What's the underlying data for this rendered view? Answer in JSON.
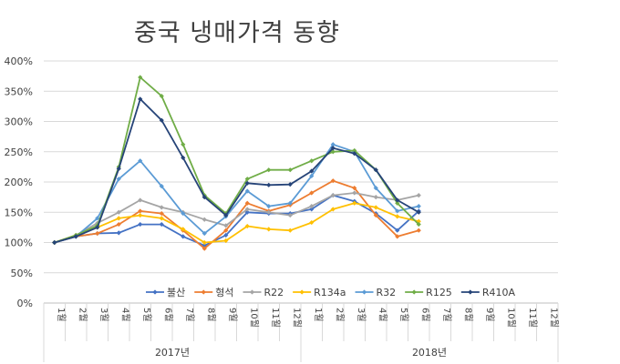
{
  "chart_data": {
    "type": "line",
    "title": "중국 냉매가격 동향",
    "xlabel": "",
    "ylabel": "",
    "ylim": [
      0,
      400
    ],
    "y_ticks": [
      "0%",
      "50%",
      "100%",
      "150%",
      "200%",
      "250%",
      "300%",
      "350%",
      "400%"
    ],
    "grid": true,
    "legend_position": "bottom-inside",
    "year_groups": [
      {
        "label": "2017년",
        "months": [
          "1월",
          "2월",
          "3월",
          "4월",
          "5월",
          "6월",
          "7월",
          "8월",
          "9월",
          "10월",
          "11월",
          "12월"
        ]
      },
      {
        "label": "2018년",
        "months": [
          "1월",
          "2월",
          "3월",
          "4월",
          "5월",
          "6월",
          "7월",
          "8월",
          "9월",
          "10월",
          "11월",
          "12월"
        ]
      }
    ],
    "series": [
      {
        "name": "불산",
        "color": "#4472C4",
        "values": [
          100,
          110,
          115,
          116,
          130,
          130,
          110,
          95,
          112,
          150,
          148,
          148,
          155,
          178,
          168,
          148,
          120,
          152,
          null,
          null,
          null,
          null,
          null,
          null
        ]
      },
      {
        "name": "형석",
        "color": "#ED7D31",
        "values": [
          100,
          110,
          115,
          130,
          152,
          148,
          120,
          90,
          120,
          165,
          152,
          162,
          182,
          202,
          190,
          145,
          110,
          120,
          null,
          null,
          null,
          null,
          null,
          null
        ]
      },
      {
        "name": "R22",
        "color": "#A5A5A5",
        "values": [
          100,
          112,
          132,
          150,
          170,
          158,
          150,
          138,
          128,
          155,
          150,
          145,
          160,
          178,
          182,
          175,
          170,
          178,
          null,
          null,
          null,
          null,
          null,
          null
        ]
      },
      {
        "name": "R134a",
        "color": "#FFC000",
        "values": [
          100,
          112,
          125,
          140,
          145,
          140,
          122,
          100,
          103,
          127,
          122,
          120,
          133,
          155,
          165,
          158,
          143,
          135,
          null,
          null,
          null,
          null,
          null,
          null
        ]
      },
      {
        "name": "R32",
        "color": "#5B9BD5",
        "values": [
          100,
          110,
          140,
          205,
          235,
          193,
          148,
          115,
          143,
          185,
          160,
          165,
          210,
          262,
          250,
          190,
          152,
          160,
          null,
          null,
          null,
          null,
          null,
          null
        ]
      },
      {
        "name": "R125",
        "color": "#70AD47",
        "values": [
          100,
          112,
          128,
          225,
          373,
          342,
          262,
          178,
          148,
          205,
          220,
          220,
          235,
          250,
          252,
          220,
          165,
          130,
          null,
          null,
          null,
          null,
          null,
          null
        ]
      },
      {
        "name": "R410A",
        "color": "#264478",
        "values": [
          100,
          110,
          125,
          222,
          337,
          302,
          240,
          175,
          145,
          198,
          195,
          196,
          218,
          256,
          247,
          220,
          170,
          150,
          null,
          null,
          null,
          null,
          null,
          null
        ]
      }
    ]
  }
}
